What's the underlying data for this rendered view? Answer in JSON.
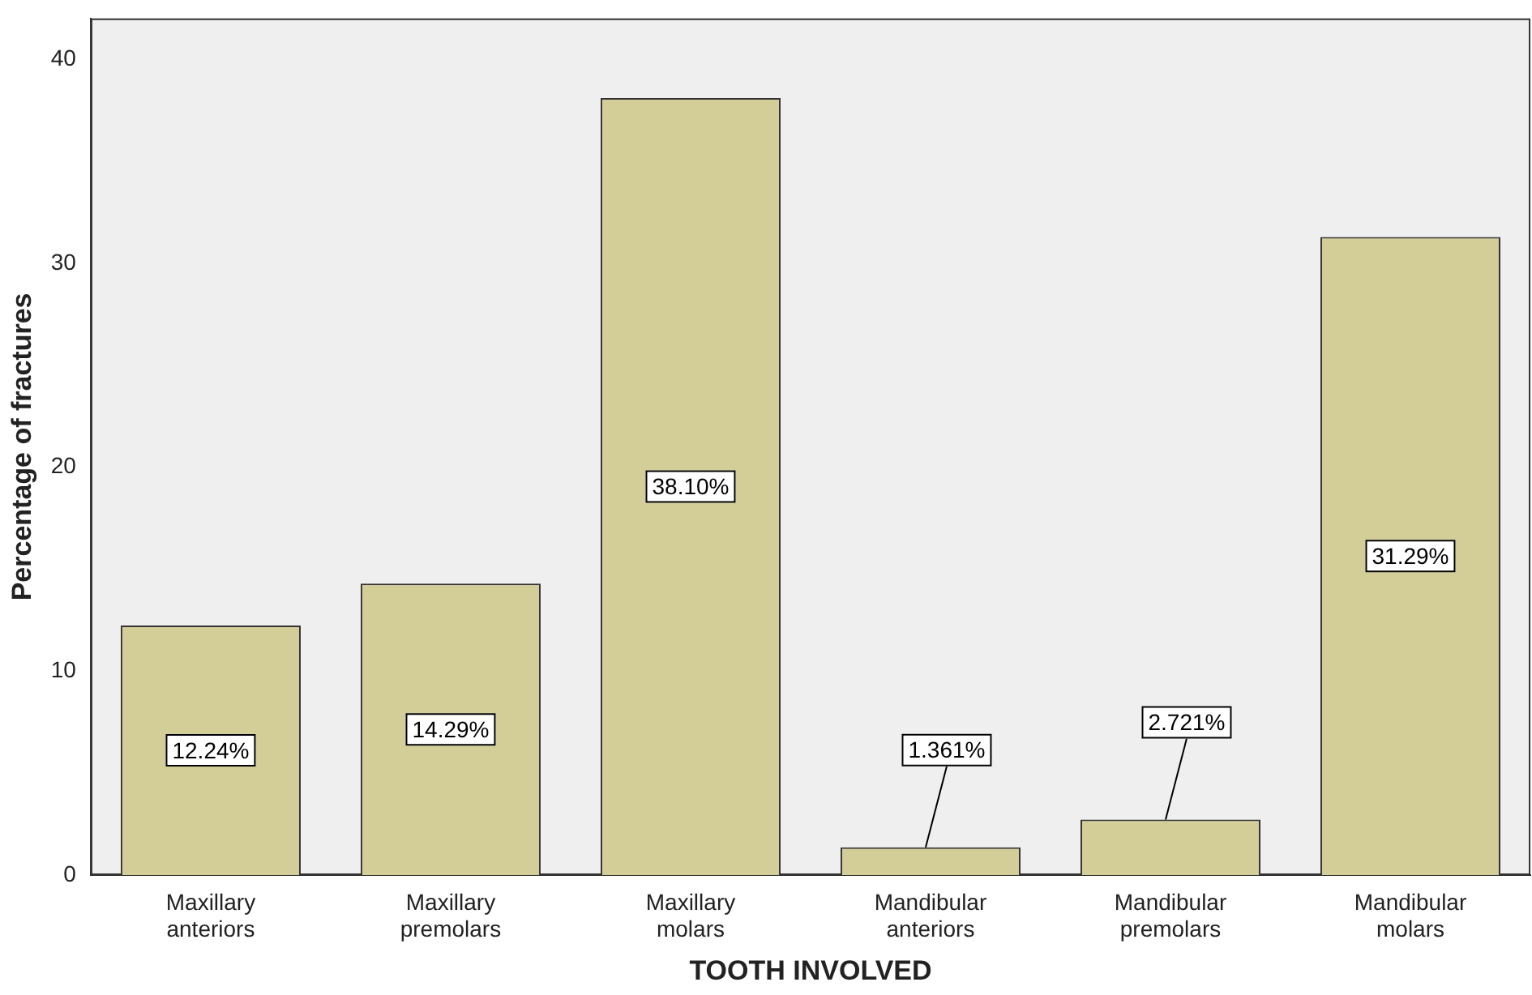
{
  "chart_data": {
    "type": "bar",
    "xlabel": "TOOTH INVOLVED",
    "ylabel": "Percentage of fractures",
    "categories": [
      "Maxillary anteriors",
      "Maxillary premolars",
      "Maxillary molars",
      "Mandibular anteriors",
      "Mandibular premolars",
      "Mandibular molars"
    ],
    "values": [
      12.24,
      14.29,
      38.1,
      1.361,
      2.721,
      31.29
    ],
    "value_labels": [
      "12.24%",
      "14.29%",
      "38.10%",
      "1.361%",
      "2.721%",
      "31.29%"
    ],
    "color": "#d3ce97",
    "ylim": [
      0,
      42
    ],
    "yticks": [
      0,
      10,
      20,
      30,
      40
    ],
    "grid": false,
    "legend": false
  }
}
